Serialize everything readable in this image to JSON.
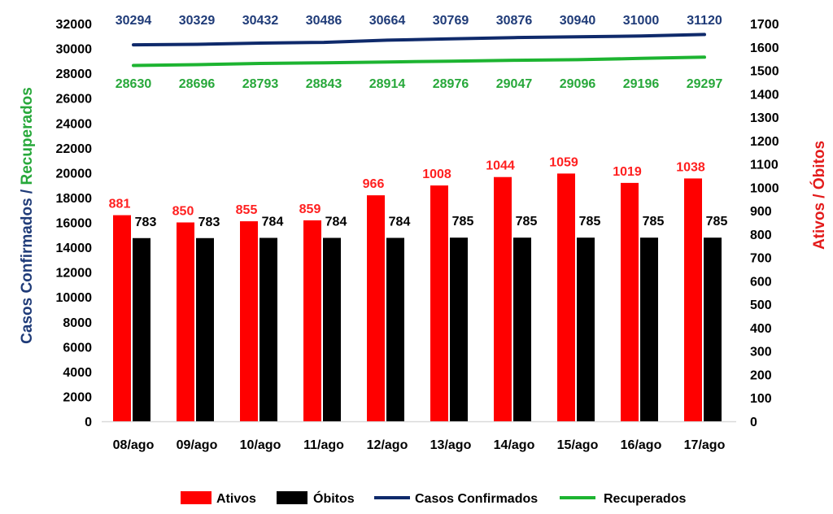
{
  "chart_data": {
    "type": "bar",
    "categories": [
      "08/ago",
      "09/ago",
      "10/ago",
      "11/ago",
      "12/ago",
      "13/ago",
      "14/ago",
      "15/ago",
      "16/ago",
      "17/ago"
    ],
    "series": [
      {
        "name": "Ativos",
        "type": "bar",
        "axis": "right",
        "color": "#ff0000",
        "label_color": "#ff2020",
        "values": [
          881,
          850,
          855,
          859,
          966,
          1008,
          1044,
          1059,
          1019,
          1038
        ]
      },
      {
        "name": "Óbitos",
        "type": "bar",
        "axis": "right",
        "color": "#000000",
        "label_color": "#000000",
        "values": [
          783,
          783,
          784,
          784,
          784,
          785,
          785,
          785,
          785,
          785
        ]
      },
      {
        "name": "Casos Confirmados",
        "type": "line",
        "axis": "left",
        "color": "#0f2a6b",
        "label_color": "#1f3b78",
        "values": [
          30294,
          30329,
          30432,
          30486,
          30664,
          30769,
          30876,
          30940,
          31000,
          31120
        ]
      },
      {
        "name": "Recuperados",
        "type": "line",
        "axis": "left",
        "color": "#1db431",
        "label_color": "#27a83a",
        "values": [
          28630,
          28696,
          28793,
          28843,
          28914,
          28976,
          29047,
          29096,
          29196,
          29297
        ]
      }
    ],
    "y_left": {
      "label_parts": [
        {
          "text": "Casos Confirmados",
          "color": "#1f3b78"
        },
        {
          "text": " / ",
          "color": "#1f3b78"
        },
        {
          "text": "Recuperados",
          "color": "#27a83a"
        }
      ],
      "range": [
        0,
        32000
      ],
      "ticks": [
        0,
        2000,
        4000,
        6000,
        8000,
        10000,
        12000,
        14000,
        16000,
        18000,
        20000,
        22000,
        24000,
        26000,
        28000,
        30000,
        32000
      ]
    },
    "y_right": {
      "label_parts": [
        {
          "text": "Ativos",
          "color": "#e31b1b"
        },
        {
          "text": " / ",
          "color": "#e31b1b"
        },
        {
          "text": "Óbitos",
          "color": "#e31b1b"
        }
      ],
      "range": [
        0,
        1700
      ],
      "ticks": [
        0,
        100,
        200,
        300,
        400,
        500,
        600,
        700,
        800,
        900,
        1000,
        1100,
        1200,
        1300,
        1400,
        1500,
        1600,
        1700
      ]
    },
    "grid": false,
    "legend": {
      "position": "bottom",
      "items": [
        {
          "label": "Ativos",
          "kind": "box",
          "color": "#ff0000"
        },
        {
          "label": "Óbitos",
          "kind": "box",
          "color": "#000000"
        },
        {
          "label": "Casos Confirmados",
          "kind": "line",
          "color": "#0f2a6b"
        },
        {
          "label": "Recuperados",
          "kind": "line",
          "color": "#1db431"
        }
      ]
    }
  }
}
